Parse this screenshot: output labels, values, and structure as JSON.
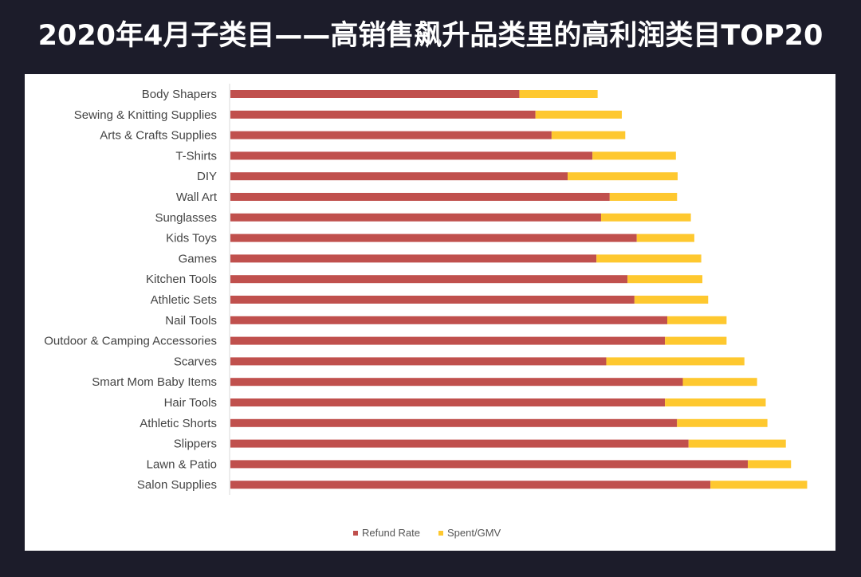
{
  "title": "2020年4月子类目——高销售飙升品类里的高利润类目TOP20",
  "chart_data": {
    "type": "bar",
    "orientation": "horizontal",
    "stacked": true,
    "categories": [
      "Body Shapers",
      "Sewing & Knitting Supplies",
      "Arts & Crafts Supplies",
      "T-Shirts",
      "DIY",
      "Wall Art",
      "Sunglasses",
      "Kids Toys",
      "Games",
      "Kitchen Tools",
      "Athletic Sets",
      "Nail Tools",
      "Outdoor & Camping Accessories",
      "Scarves",
      "Smart Mom Baby Items",
      "Hair Tools",
      "Athletic Shorts",
      "Slippers",
      "Lawn & Patio",
      "Salon Supplies"
    ],
    "series": [
      {
        "name": "Refund Rate",
        "color": "#c0504d",
        "values": [
          0.502,
          0.53,
          0.558,
          0.629,
          0.586,
          0.659,
          0.644,
          0.706,
          0.636,
          0.69,
          0.702,
          0.759,
          0.755,
          0.653,
          0.786,
          0.755,
          0.776,
          0.796,
          0.899,
          0.834
        ]
      },
      {
        "name": "Spent/GMV",
        "color": "#fec82f",
        "values": [
          0.136,
          0.15,
          0.128,
          0.145,
          0.191,
          0.117,
          0.156,
          0.1,
          0.182,
          0.13,
          0.128,
          0.103,
          0.107,
          0.24,
          0.129,
          0.175,
          0.157,
          0.169,
          0.075,
          0.168
        ]
      }
    ],
    "xlim": [
      0,
      1
    ],
    "axis_visible": false,
    "grid": false,
    "legend_position": "bottom"
  }
}
